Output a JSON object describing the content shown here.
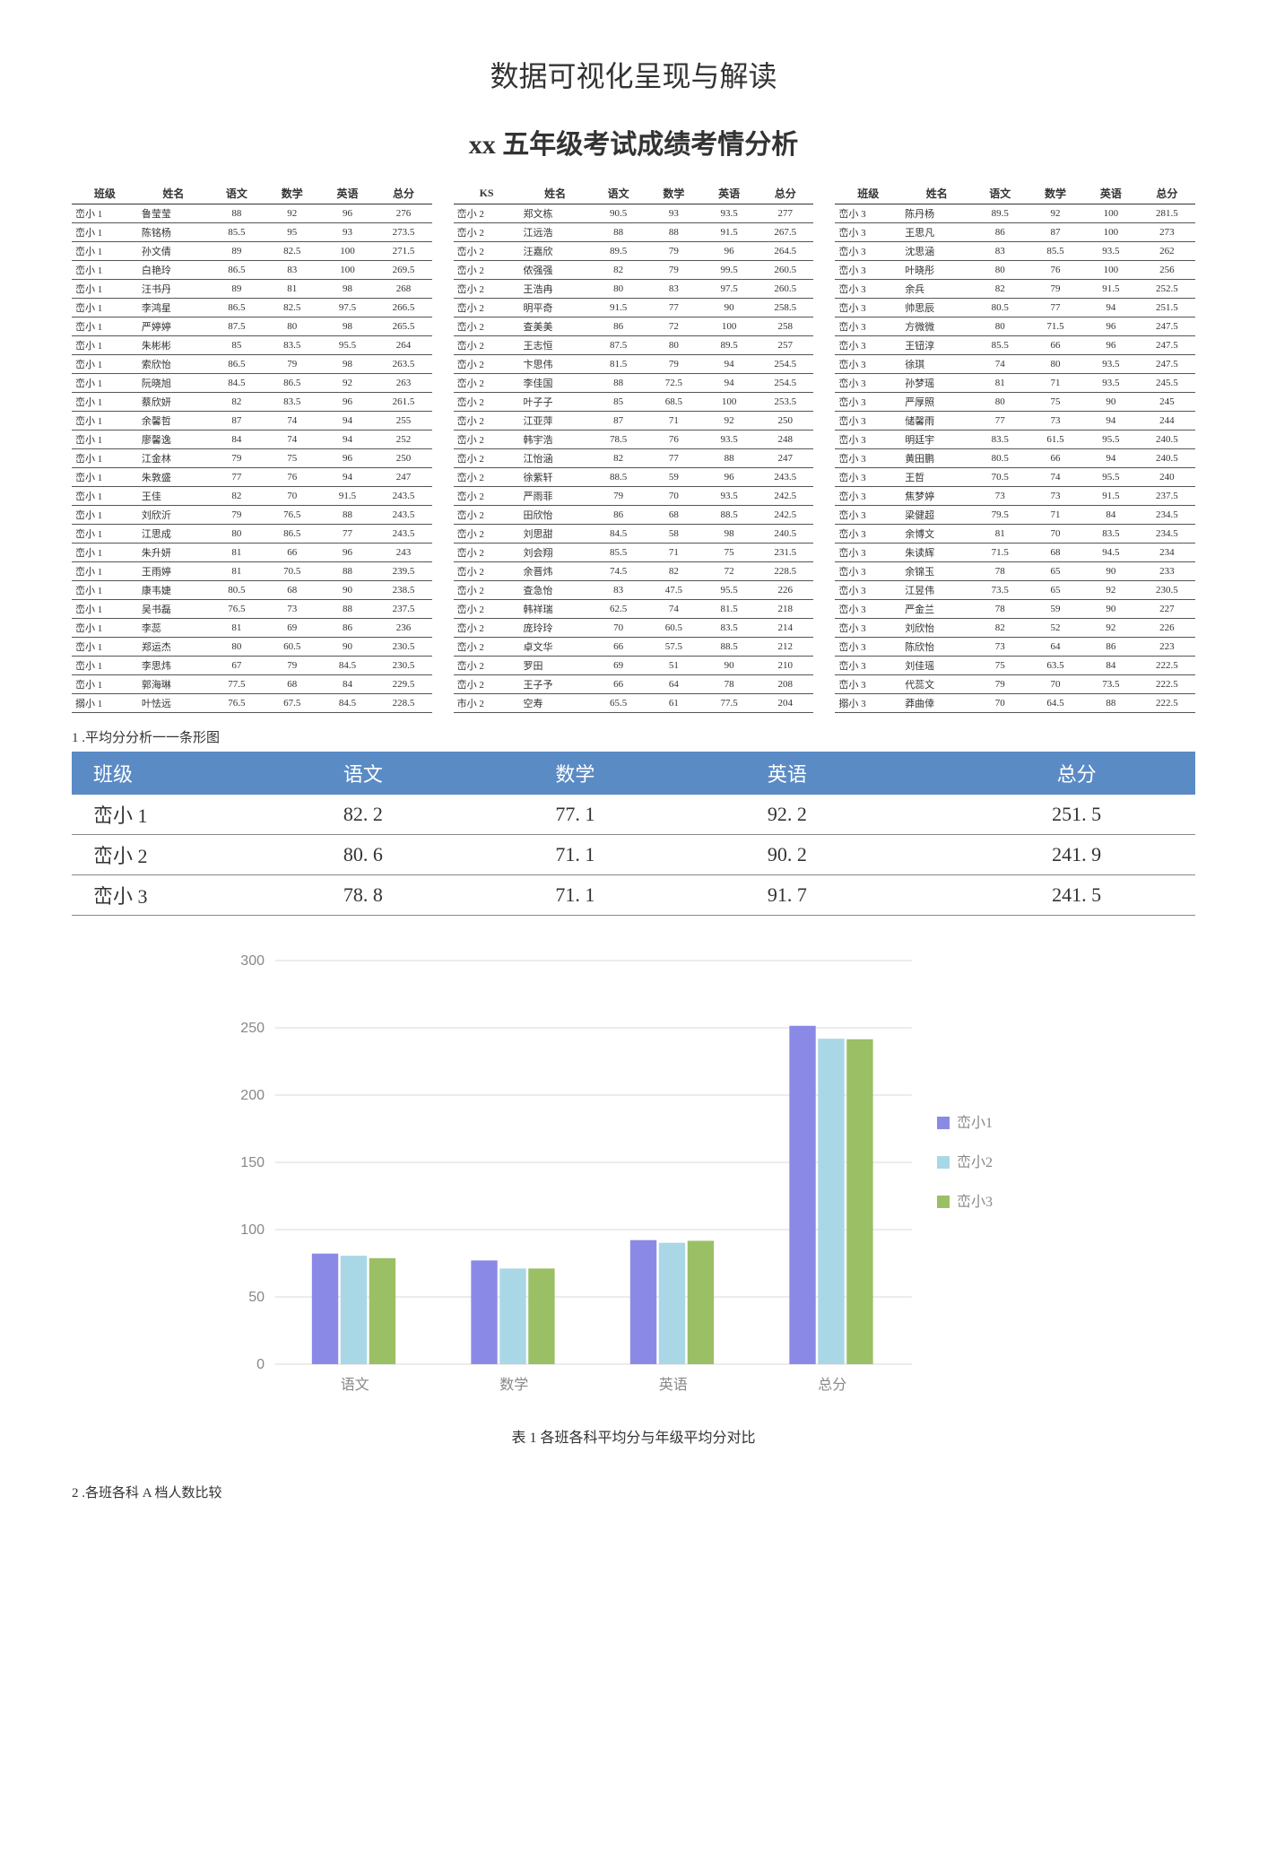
{
  "title1": "数据可视化呈现与解读",
  "title2": "xx 五年级考试成绩考情分析",
  "columns": [
    "班级",
    "姓名",
    "语文",
    "数学",
    "英语",
    "总分"
  ],
  "columns2": [
    "KS",
    "姓名",
    "语文",
    "数学",
    "英语",
    "总分"
  ],
  "table1": [
    [
      "峦小 1",
      "鲁莹莹",
      "88",
      "92",
      "96",
      "276"
    ],
    [
      "峦小 1",
      "陈铭杨",
      "85.5",
      "95",
      "93",
      "273.5"
    ],
    [
      "峦小 1",
      "孙文倩",
      "89",
      "82.5",
      "100",
      "271.5"
    ],
    [
      "峦小 1",
      "白艳玲",
      "86.5",
      "83",
      "100",
      "269.5"
    ],
    [
      "峦小 1",
      "汪书丹",
      "89",
      "81",
      "98",
      "268"
    ],
    [
      "峦小 1",
      "李鸿星",
      "86.5",
      "82.5",
      "97.5",
      "266.5"
    ],
    [
      "峦小 1",
      "严婷婷",
      "87.5",
      "80",
      "98",
      "265.5"
    ],
    [
      "峦小 1",
      "朱彬彬",
      "85",
      "83.5",
      "95.5",
      "264"
    ],
    [
      "峦小 1",
      "索欣怡",
      "86.5",
      "79",
      "98",
      "263.5"
    ],
    [
      "峦小 1",
      "阮晓旭",
      "84.5",
      "86.5",
      "92",
      "263"
    ],
    [
      "峦小 1",
      "蔡欣妍",
      "82",
      "83.5",
      "96",
      "261.5"
    ],
    [
      "峦小 1",
      "余馨哲",
      "87",
      "74",
      "94",
      "255"
    ],
    [
      "峦小 1",
      "廖馨逸",
      "84",
      "74",
      "94",
      "252"
    ],
    [
      "峦小 1",
      "江金林",
      "79",
      "75",
      "96",
      "250"
    ],
    [
      "峦小 1",
      "朱敦盛",
      "77",
      "76",
      "94",
      "247"
    ],
    [
      "峦小 1",
      "王佳",
      "82",
      "70",
      "91.5",
      "243.5"
    ],
    [
      "峦小 1",
      "刘欣沂",
      "79",
      "76.5",
      "88",
      "243.5"
    ],
    [
      "峦小 1",
      "江思成",
      "80",
      "86.5",
      "77",
      "243.5"
    ],
    [
      "峦小 1",
      "朱升妍",
      "81",
      "66",
      "96",
      "243"
    ],
    [
      "峦小 1",
      "王雨婷",
      "81",
      "70.5",
      "88",
      "239.5"
    ],
    [
      "峦小 1",
      "康韦婕",
      "80.5",
      "68",
      "90",
      "238.5"
    ],
    [
      "峦小 1",
      "吴书磊",
      "76.5",
      "73",
      "88",
      "237.5"
    ],
    [
      "峦小 1",
      "李蕊",
      "81",
      "69",
      "86",
      "236"
    ],
    [
      "峦小 1",
      "郑运杰",
      "80",
      "60.5",
      "90",
      "230.5"
    ],
    [
      "峦小 1",
      "李思炜",
      "67",
      "79",
      "84.5",
      "230.5"
    ],
    [
      "峦小 1",
      "郭海琳",
      "77.5",
      "68",
      "84",
      "229.5"
    ],
    [
      "搦小 1",
      "叶怯远",
      "76.5",
      "67.5",
      "84.5",
      "228.5"
    ]
  ],
  "table2": [
    [
      "峦小 2",
      "郑文栋",
      "90.5",
      "93",
      "93.5",
      "277"
    ],
    [
      "峦小 2",
      "江远浩",
      "88",
      "88",
      "91.5",
      "267.5"
    ],
    [
      "峦小 2",
      "汪嘉欣",
      "89.5",
      "79",
      "96",
      "264.5"
    ],
    [
      "峦小 2",
      "侬强强",
      "82",
      "79",
      "99.5",
      "260.5"
    ],
    [
      "峦小 2",
      "王浩冉",
      "80",
      "83",
      "97.5",
      "260.5"
    ],
    [
      "峦小 2",
      "明平奇",
      "91.5",
      "77",
      "90",
      "258.5"
    ],
    [
      "峦小 2",
      "查美美",
      "86",
      "72",
      "100",
      "258"
    ],
    [
      "峦小 2",
      "王志恒",
      "87.5",
      "80",
      "89.5",
      "257"
    ],
    [
      "峦小 2",
      "卞思伟",
      "81.5",
      "79",
      "94",
      "254.5"
    ],
    [
      "峦小 2",
      "李佳国",
      "88",
      "72.5",
      "94",
      "254.5"
    ],
    [
      "峦小 2",
      "叶子子",
      "85",
      "68.5",
      "100",
      "253.5"
    ],
    [
      "峦小 2",
      "江亚萍",
      "87",
      "71",
      "92",
      "250"
    ],
    [
      "峦小 2",
      "韩宇浩",
      "78.5",
      "76",
      "93.5",
      "248"
    ],
    [
      "峦小 2",
      "江怡涵",
      "82",
      "77",
      "88",
      "247"
    ],
    [
      "峦小 2",
      "徐紫轩",
      "88.5",
      "59",
      "96",
      "243.5"
    ],
    [
      "峦小 2",
      "严雨菲",
      "79",
      "70",
      "93.5",
      "242.5"
    ],
    [
      "峦小 2",
      "田欣怡",
      "86",
      "68",
      "88.5",
      "242.5"
    ],
    [
      "峦小 2",
      "刘思甜",
      "84.5",
      "58",
      "98",
      "240.5"
    ],
    [
      "峦小 2",
      "刘会翔",
      "85.5",
      "71",
      "75",
      "231.5"
    ],
    [
      "峦小 2",
      "余晋炜",
      "74.5",
      "82",
      "72",
      "228.5"
    ],
    [
      "峦小 2",
      "查急怡",
      "83",
      "47.5",
      "95.5",
      "226"
    ],
    [
      "峦小 2",
      "韩祥瑞",
      "62.5",
      "74",
      "81.5",
      "218"
    ],
    [
      "峦小 2",
      "庞玲玲",
      "70",
      "60.5",
      "83.5",
      "214"
    ],
    [
      "峦小 2",
      "卓文华",
      "66",
      "57.5",
      "88.5",
      "212"
    ],
    [
      "峦小 2",
      "罗田",
      "69",
      "51",
      "90",
      "210"
    ],
    [
      "峦小 2",
      "王子予",
      "66",
      "64",
      "78",
      "208"
    ],
    [
      "市小 2",
      "空寿",
      "65.5",
      "61",
      "77.5",
      "204"
    ]
  ],
  "table3": [
    [
      "峦小 3",
      "陈丹杨",
      "89.5",
      "92",
      "100",
      "281.5"
    ],
    [
      "峦小 3",
      "王思凡",
      "86",
      "87",
      "100",
      "273"
    ],
    [
      "峦小 3",
      "沈思涵",
      "83",
      "85.5",
      "93.5",
      "262"
    ],
    [
      "峦小 3",
      "叶晓彤",
      "80",
      "76",
      "100",
      "256"
    ],
    [
      "峦小 3",
      "余兵",
      "82",
      "79",
      "91.5",
      "252.5"
    ],
    [
      "峦小 3",
      "帅思辰",
      "80.5",
      "77",
      "94",
      "251.5"
    ],
    [
      "峦小 3",
      "方微微",
      "80",
      "71.5",
      "96",
      "247.5"
    ],
    [
      "峦小 3",
      "王钮淳",
      "85.5",
      "66",
      "96",
      "247.5"
    ],
    [
      "峦小 3",
      "徐琪",
      "74",
      "80",
      "93.5",
      "247.5"
    ],
    [
      "峦小 3",
      "孙梦瑶",
      "81",
      "71",
      "93.5",
      "245.5"
    ],
    [
      "峦小 3",
      "严厚照",
      "80",
      "75",
      "90",
      "245"
    ],
    [
      "峦小 3",
      "储馨雨",
      "77",
      "73",
      "94",
      "244"
    ],
    [
      "峦小 3",
      "明廷宇",
      "83.5",
      "61.5",
      "95.5",
      "240.5"
    ],
    [
      "峦小 3",
      "黄田鹏",
      "80.5",
      "66",
      "94",
      "240.5"
    ],
    [
      "峦小 3",
      "王哲",
      "70.5",
      "74",
      "95.5",
      "240"
    ],
    [
      "峦小 3",
      "焦梦婷",
      "73",
      "73",
      "91.5",
      "237.5"
    ],
    [
      "峦小 3",
      "梁健超",
      "79.5",
      "71",
      "84",
      "234.5"
    ],
    [
      "峦小 3",
      "余博文",
      "81",
      "70",
      "83.5",
      "234.5"
    ],
    [
      "峦小 3",
      "朱读辉",
      "71.5",
      "68",
      "94.5",
      "234"
    ],
    [
      "峦小 3",
      "余锦玉",
      "78",
      "65",
      "90",
      "233"
    ],
    [
      "峦小 3",
      "江昱伟",
      "73.5",
      "65",
      "92",
      "230.5"
    ],
    [
      "峦小 3",
      "严金兰",
      "78",
      "59",
      "90",
      "227"
    ],
    [
      "峦小 3",
      "刘欣怡",
      "82",
      "52",
      "92",
      "226"
    ],
    [
      "峦小 3",
      "陈欣怡",
      "73",
      "64",
      "86",
      "223"
    ],
    [
      "峦小 3",
      "刘佳瑶",
      "75",
      "63.5",
      "84",
      "222.5"
    ],
    [
      "峦小 3",
      "代蕊文",
      "79",
      "70",
      "73.5",
      "222.5"
    ],
    [
      "搦小 3",
      "莽曲倖",
      "70",
      "64.5",
      "88",
      "222.5"
    ]
  ],
  "section1_label": "1 .平均分分析一一条形图",
  "avg_table": {
    "headers": [
      "班级",
      "语文",
      "数学",
      "英语",
      "总分"
    ],
    "rows": [
      [
        "峦小 1",
        "82. 2",
        "77. 1",
        "92. 2",
        "251. 5"
      ],
      [
        "峦小 2",
        "80. 6",
        "71. 1",
        "90. 2",
        "241. 9"
      ],
      [
        "峦小 3",
        "78. 8",
        "71. 1",
        "91. 7",
        "241. 5"
      ]
    ]
  },
  "chart": {
    "type": "bar",
    "categories": [
      "语文",
      "数学",
      "英语",
      "总分"
    ],
    "series": [
      {
        "name": "峦小1",
        "color": "#8a8ae6",
        "values": [
          82.2,
          77.1,
          92.2,
          251.5
        ]
      },
      {
        "name": "峦小2",
        "color": "#a9d7e6",
        "values": [
          80.6,
          71.1,
          90.2,
          241.9
        ]
      },
      {
        "name": "峦小3",
        "color": "#9bbf65",
        "values": [
          78.8,
          71.1,
          91.7,
          241.5
        ]
      }
    ],
    "ylim": [
      0,
      300
    ],
    "ytick_step": 50,
    "grid_color": "#d9d9d9",
    "axis_font_color": "#888888",
    "legend_marker": "■",
    "background": "#ffffff",
    "bar_group_gap": 0.45,
    "bar_width": 0.18,
    "label_fontsize": 16
  },
  "chart_caption": "表 1 各班各科平均分与年级平均分对比",
  "section2_label": "2 .各班各科 A 档人数比较"
}
